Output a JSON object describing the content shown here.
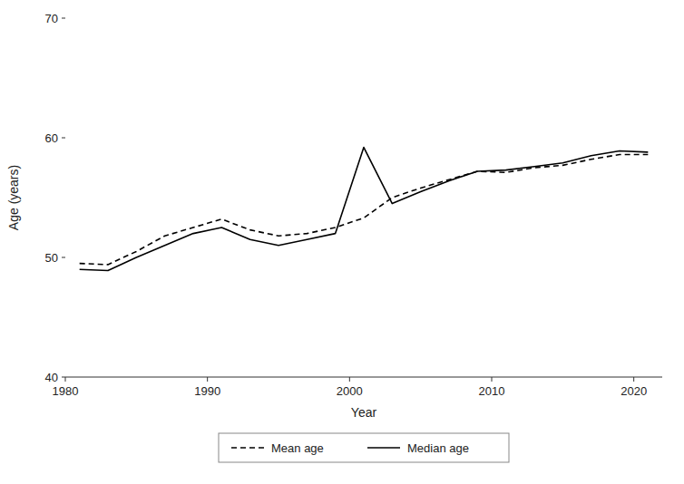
{
  "chart_data": {
    "type": "line",
    "xlabel": "Year",
    "ylabel": "Age (years)",
    "x": [
      1981,
      1983,
      1985,
      1987,
      1989,
      1991,
      1993,
      1995,
      1997,
      1999,
      2001,
      2003,
      2005,
      2007,
      2009,
      2011,
      2013,
      2015,
      2017,
      2019,
      2021
    ],
    "series": [
      {
        "name": "Mean age",
        "color": "#000000",
        "line_style": "dashed",
        "values": [
          49.5,
          49.4,
          50.5,
          51.8,
          52.5,
          53.2,
          52.3,
          51.8,
          52.0,
          52.5,
          53.3,
          55.0,
          55.8,
          56.5,
          57.2,
          57.1,
          57.5,
          57.7,
          58.2,
          58.6,
          58.6
        ]
      },
      {
        "name": "Median age",
        "color": "#000000",
        "line_style": "solid",
        "values": [
          49.0,
          48.9,
          50.0,
          51.0,
          52.0,
          52.5,
          51.5,
          51.0,
          51.5,
          52.0,
          59.2,
          54.5,
          55.5,
          56.4,
          57.2,
          57.3,
          57.6,
          57.9,
          58.5,
          58.9,
          58.8
        ]
      }
    ],
    "xlim": [
      1980,
      2022
    ],
    "ylim": [
      40,
      70
    ],
    "xticks": [
      1980,
      1990,
      2000,
      2010,
      2020
    ],
    "yticks": [
      40,
      50,
      60,
      70
    ],
    "grid": false,
    "legend": "bottom"
  }
}
